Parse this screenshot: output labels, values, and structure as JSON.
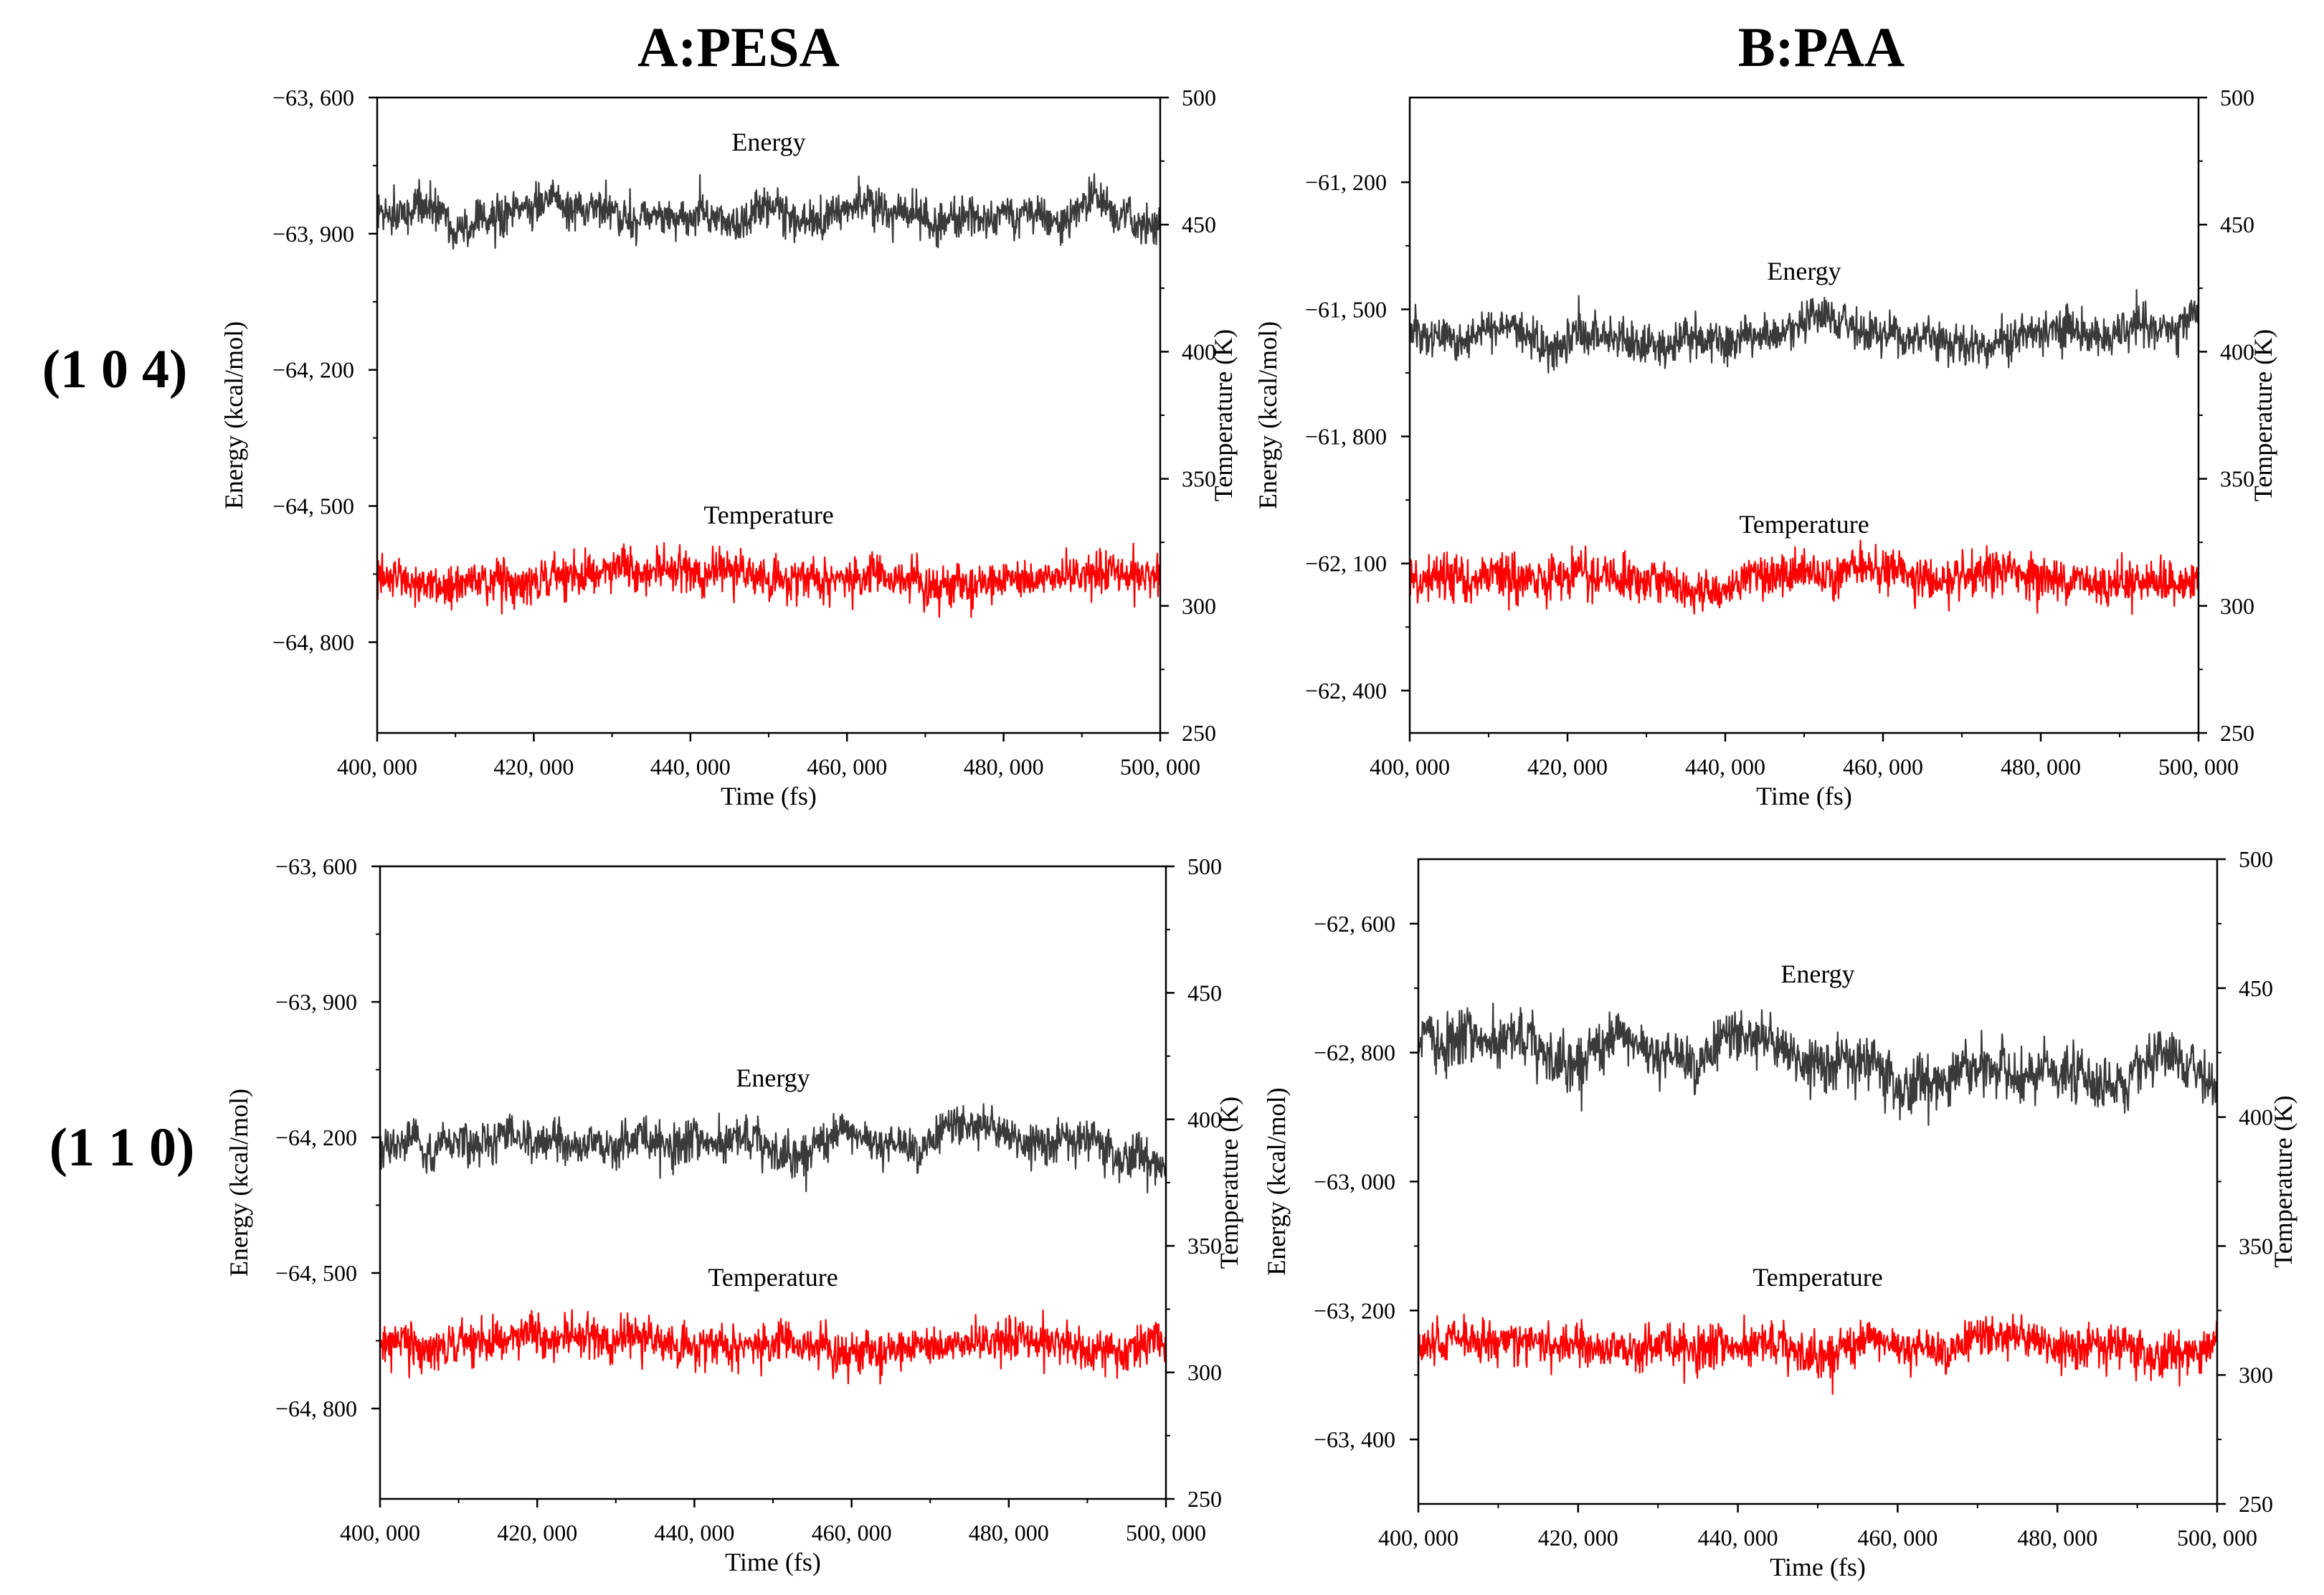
{
  "colors": {
    "energy": "#3a3a3a",
    "temperature": "#ff0000",
    "axis": "#000000"
  },
  "column_titles": [
    "A:PESA",
    "B:PAA"
  ],
  "row_labels": [
    "(1 0 4)",
    "(1 1 0)"
  ],
  "chart_data": [
    {
      "panel": "A (1 0 4)",
      "type": "line",
      "xlabel": "Time (fs)",
      "ylabel_left": "Energy (kcal/mol)",
      "ylabel_right": "Temperature (K)",
      "xlim": [
        400000,
        500000
      ],
      "x_ticks": [
        400000,
        420000,
        440000,
        460000,
        480000,
        500000
      ],
      "x_tick_labels": [
        "400, 000",
        "420, 000",
        "440, 000",
        "460, 000",
        "480, 000",
        "500, 000"
      ],
      "ylim_left": [
        -65000,
        -63600
      ],
      "y_left_ticks": [
        -63600,
        -63900,
        -64200,
        -64500,
        -64800
      ],
      "y_left_tick_labels": [
        "−63, 600",
        "−63, 900",
        "−64, 200",
        "−64, 500",
        "−64, 800"
      ],
      "ylim_right": [
        250,
        500
      ],
      "y_right_ticks": [
        500,
        450,
        400,
        350,
        300,
        250
      ],
      "y_right_tick_labels": [
        "500",
        "450",
        "400",
        "350",
        "300",
        "250"
      ],
      "series": [
        {
          "name": "Energy",
          "axis": "left",
          "mean": -63860,
          "noise": 22,
          "drift": 18,
          "trend": 0,
          "seed": 11,
          "end_drop": -40
        },
        {
          "name": "Temperature",
          "axis": "right",
          "mean": 311,
          "noise": 4,
          "drift": 2,
          "trend": 0,
          "seed": 12,
          "end_drop": 0
        }
      ]
    },
    {
      "panel": "B (1 0 4)",
      "type": "line",
      "xlabel": "Time (fs)",
      "ylabel_left": "Energy (kcal/mol)",
      "ylabel_right": "Temperature (K)",
      "xlim": [
        400000,
        500000
      ],
      "x_ticks": [
        400000,
        420000,
        440000,
        460000,
        480000,
        500000
      ],
      "x_tick_labels": [
        "400, 000",
        "420, 000",
        "440, 000",
        "460, 000",
        "480, 000",
        "500, 000"
      ],
      "ylim_left": [
        -62500,
        -61000
      ],
      "y_left_ticks": [
        -61200,
        -61500,
        -61800,
        -62100,
        -62400
      ],
      "y_left_tick_labels": [
        "−61, 200",
        "−61, 500",
        "−61, 800",
        "−62, 100",
        "−62, 400"
      ],
      "ylim_right": [
        250,
        500
      ],
      "y_right_ticks": [
        500,
        450,
        400,
        350,
        300,
        250
      ],
      "y_right_tick_labels": [
        "500",
        "450",
        "400",
        "350",
        "300",
        "250"
      ],
      "series": [
        {
          "name": "Energy",
          "axis": "left",
          "mean": -61560,
          "noise": 24,
          "drift": 18,
          "trend": 0,
          "seed": 21,
          "end_drop": 0
        },
        {
          "name": "Temperature",
          "axis": "right",
          "mean": 311,
          "noise": 4,
          "drift": 2,
          "trend": 0,
          "seed": 22,
          "end_drop": 0
        }
      ]
    },
    {
      "panel": "A (1 1 0)",
      "type": "line",
      "xlabel": "Time (fs)",
      "ylabel_left": "Energy (kcal/mol)",
      "ylabel_right": "Temperature (K)",
      "xlim": [
        400000,
        500000
      ],
      "x_ticks": [
        400000,
        420000,
        440000,
        460000,
        480000,
        500000
      ],
      "x_tick_labels": [
        "400, 000",
        "420, 000",
        "440, 000",
        "460, 000",
        "480, 000",
        "500, 000"
      ],
      "ylim_left": [
        -65000,
        -63600
      ],
      "y_left_ticks": [
        -63600,
        -63900,
        -64200,
        -64500,
        -64800
      ],
      "y_left_tick_labels": [
        "−63, 600",
        "−63, 900",
        "−64, 200",
        "−64, 500",
        "−64, 800"
      ],
      "ylim_right": [
        250,
        500
      ],
      "y_right_ticks": [
        500,
        450,
        400,
        350,
        300,
        250
      ],
      "y_right_tick_labels": [
        "500",
        "450",
        "400",
        "350",
        "300",
        "250"
      ],
      "series": [
        {
          "name": "Energy",
          "axis": "left",
          "mean": -64210,
          "noise": 22,
          "drift": 18,
          "trend": 0,
          "seed": 31,
          "end_drop": -40
        },
        {
          "name": "Temperature",
          "axis": "right",
          "mean": 311,
          "noise": 4,
          "drift": 2,
          "trend": 0,
          "seed": 32,
          "end_drop": 0
        }
      ]
    },
    {
      "panel": "B (1 1 0)",
      "type": "line",
      "xlabel": "Time (fs)",
      "ylabel_left": "Energy (kcal/mol)",
      "ylabel_right": "Temperature (K)",
      "xlim": [
        400000,
        500000
      ],
      "x_ticks": [
        400000,
        420000,
        440000,
        460000,
        480000,
        500000
      ],
      "x_tick_labels": [
        "400, 000",
        "420, 000",
        "440, 000",
        "460, 000",
        "480, 000",
        "500, 000"
      ],
      "ylim_left": [
        -63500,
        -62500
      ],
      "y_left_ticks": [
        -62600,
        -62800,
        -63000,
        -63200,
        -63400
      ],
      "y_left_tick_labels": [
        "−62, 600",
        "−62, 800",
        "−63, 000",
        "−63, 200",
        "−63, 400"
      ],
      "ylim_right": [
        250,
        500
      ],
      "y_right_ticks": [
        500,
        450,
        400,
        350,
        300,
        250
      ],
      "y_right_tick_labels": [
        "500",
        "450",
        "400",
        "350",
        "300",
        "250"
      ],
      "series": [
        {
          "name": "Energy",
          "axis": "left",
          "mean": -62775,
          "noise": 20,
          "drift": 16,
          "trend": -80,
          "seed": 41,
          "end_drop": 0
        },
        {
          "name": "Temperature",
          "axis": "right",
          "mean": 311,
          "noise": 4,
          "drift": 2,
          "trend": 0,
          "seed": 42,
          "end_drop": 0
        }
      ]
    }
  ]
}
